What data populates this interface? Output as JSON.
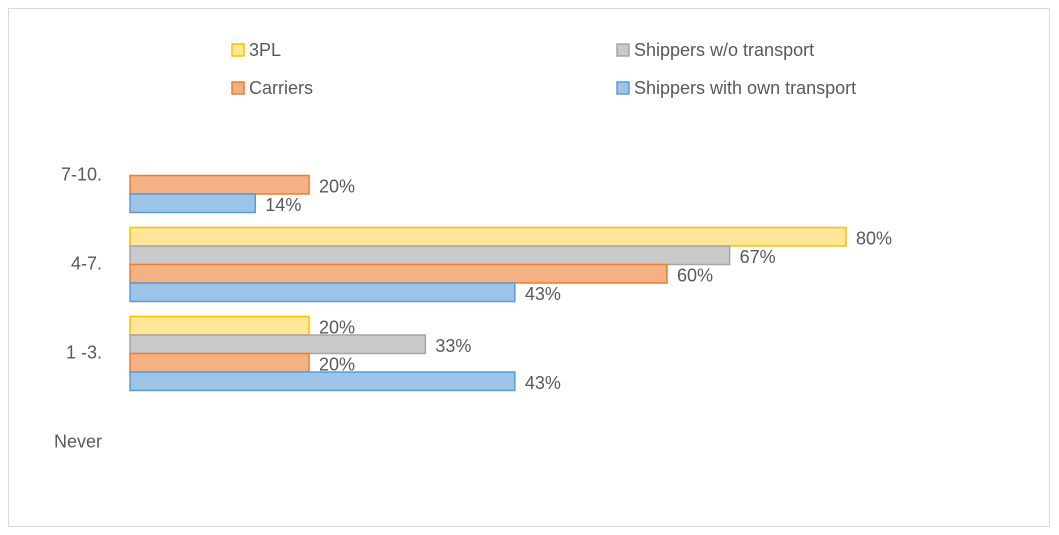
{
  "chart_data": {
    "type": "barh",
    "categories": [
      "7-10.",
      "4-7.",
      "1 -3.",
      "Never"
    ],
    "xlim": [
      0,
      100
    ],
    "legend": "top",
    "series": [
      {
        "name": "3PL",
        "color": "#ffe699",
        "edgecolor": "#ffc000",
        "values": [
          0,
          80,
          20,
          0
        ],
        "value_labels": [
          null,
          "80%",
          "20%",
          null
        ]
      },
      {
        "name": "Shippers w/o transport",
        "color": "#c9c9c9",
        "edgecolor": "#a5a5a5",
        "values": [
          0,
          67,
          33,
          0
        ],
        "value_labels": [
          null,
          "67%",
          "33%",
          null
        ]
      },
      {
        "name": "Carriers",
        "color": "#f4b183",
        "edgecolor": "#ed7d31",
        "values": [
          20,
          60,
          20,
          0
        ],
        "value_labels": [
          "20%",
          "60%",
          "20%",
          null
        ]
      },
      {
        "name": "Shippers with own transport",
        "color": "#9dc3e6",
        "edgecolor": "#5b9bd5",
        "values": [
          14,
          43,
          43,
          0
        ],
        "value_labels": [
          "14%",
          "43%",
          "43%",
          null
        ]
      }
    ]
  }
}
